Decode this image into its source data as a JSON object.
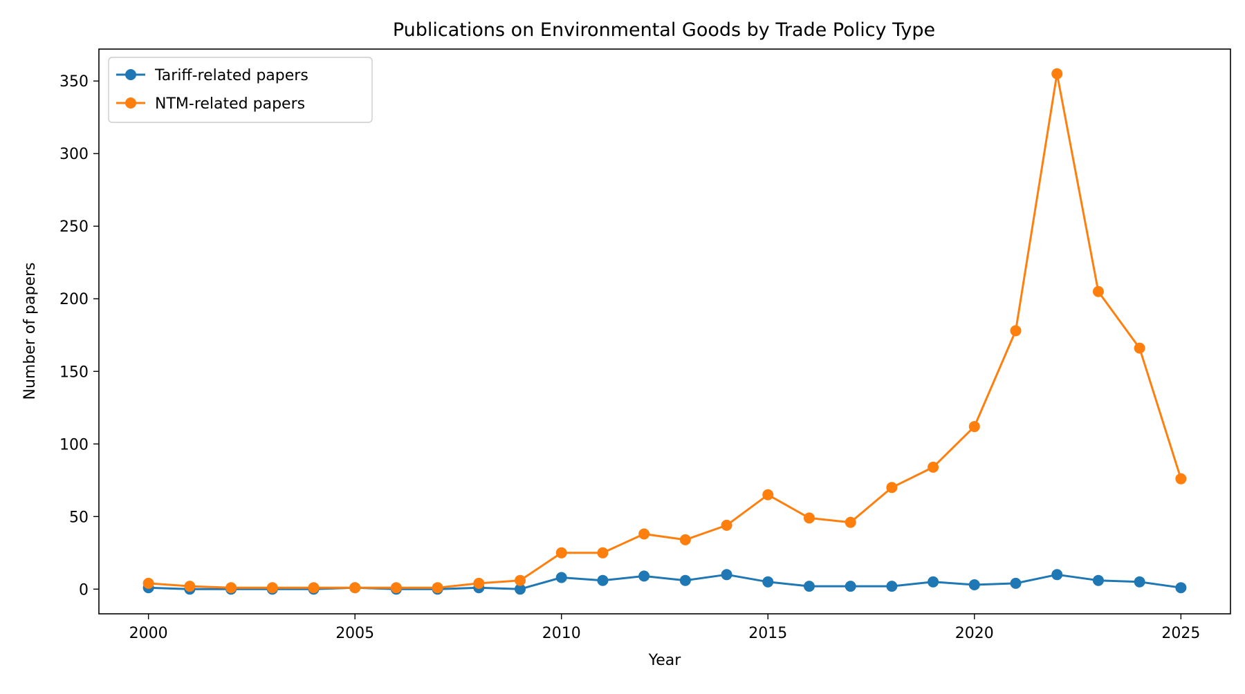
{
  "chart_data": {
    "type": "line",
    "title": "Publications on Environmental Goods by Trade Policy Type",
    "xlabel": "Year",
    "ylabel": "Number of papers",
    "xlim": [
      1998.8,
      2026.2
    ],
    "ylim": [
      -17,
      372
    ],
    "x_ticks": [
      2000,
      2005,
      2010,
      2015,
      2020,
      2025
    ],
    "y_ticks": [
      0,
      50,
      100,
      150,
      200,
      250,
      300,
      350
    ],
    "grid": false,
    "legend_position": "top-left",
    "x": [
      2000,
      2001,
      2002,
      2003,
      2004,
      2005,
      2006,
      2007,
      2008,
      2009,
      2010,
      2011,
      2012,
      2013,
      2014,
      2015,
      2016,
      2017,
      2018,
      2019,
      2020,
      2021,
      2022,
      2023,
      2024,
      2025
    ],
    "series": [
      {
        "name": "Tariff-related papers",
        "color": "#1f77b4",
        "marker": "circle",
        "values": [
          1,
          0,
          0,
          0,
          0,
          1,
          0,
          0,
          1,
          0,
          8,
          6,
          9,
          6,
          10,
          5,
          2,
          2,
          2,
          5,
          3,
          4,
          10,
          6,
          5,
          1
        ]
      },
      {
        "name": "NTM-related papers",
        "color": "#ff7f0e",
        "marker": "circle",
        "values": [
          4,
          2,
          1,
          1,
          1,
          1,
          1,
          1,
          4,
          6,
          25,
          25,
          38,
          34,
          44,
          65,
          49,
          46,
          70,
          84,
          112,
          178,
          355,
          205,
          166,
          76
        ]
      }
    ]
  }
}
